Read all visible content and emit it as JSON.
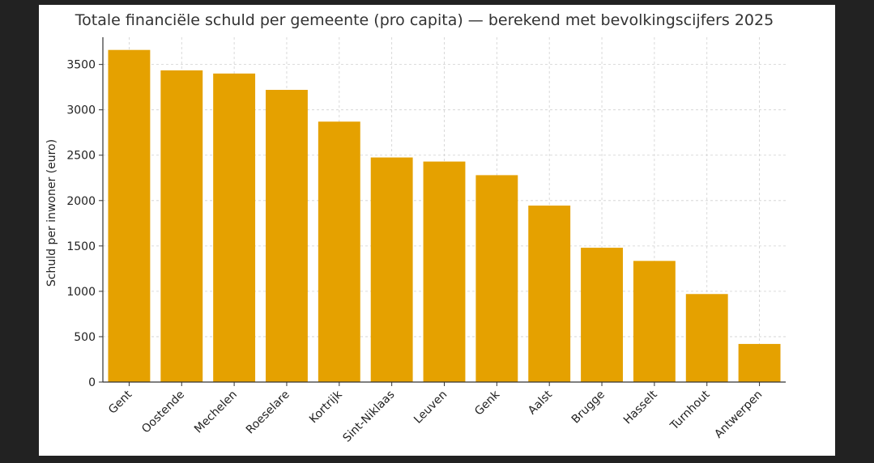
{
  "chart_data": {
    "type": "bar",
    "title": "Totale financiële schuld per gemeente (pro capita) — berekend met bevolkingscijfers 2025",
    "xlabel": "",
    "ylabel": "Schuld per inwoner (euro)",
    "categories": [
      "Gent",
      "Oostende",
      "Mechelen",
      "Roeselare",
      "Kortrijk",
      "Sint-Niklaas",
      "Leuven",
      "Genk",
      "Aalst",
      "Brugge",
      "Hasselt",
      "Turnhout",
      "Antwerpen"
    ],
    "values": [
      3660,
      3435,
      3400,
      3220,
      2870,
      2475,
      2430,
      2280,
      1945,
      1480,
      1335,
      970,
      420
    ],
    "ylim": [
      0,
      3800
    ],
    "yticks": [
      0,
      500,
      1000,
      1500,
      2000,
      2500,
      3000,
      3500
    ],
    "grid": true,
    "bar_color": "#E5A100"
  }
}
